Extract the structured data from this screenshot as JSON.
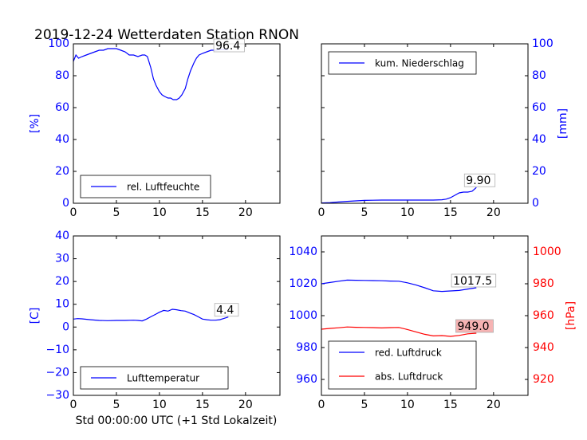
{
  "figure": {
    "title": "2019-12-24 Wetterdaten Station RNON",
    "xlabel": "Std 00:00:00 UTC (+1 Std Lokalzeit)"
  },
  "colors": {
    "blue": "#0000ff",
    "red": "#ff0000",
    "black": "#000000",
    "label_box_red": "#f4a6a6"
  },
  "chart_data": [
    {
      "id": "humidity",
      "type": "line",
      "xlim": [
        0,
        24
      ],
      "ylim": [
        0,
        100
      ],
      "xticks": [
        0,
        5,
        10,
        15,
        20
      ],
      "yticks": [
        0,
        20,
        40,
        60,
        80,
        100
      ],
      "ylabel": "[%]",
      "ytick_color": "#0000ff",
      "legend_loc": "lower-left",
      "series": [
        {
          "name": "rel. Luftfeuchte",
          "color": "#0000ff",
          "x": [
            0,
            0.3,
            0.6,
            1,
            1.5,
            2,
            2.5,
            3,
            3.5,
            4,
            4.5,
            5,
            5.5,
            6,
            6.5,
            7,
            7.5,
            8,
            8.3,
            8.6,
            9,
            9.3,
            9.6,
            10,
            10.3,
            10.6,
            11,
            11.3,
            11.6,
            12,
            12.3,
            12.6,
            13,
            13.3,
            13.6,
            14,
            14.3,
            14.6,
            15,
            15.5,
            16,
            16.5,
            17,
            17.5,
            18
          ],
          "y": [
            89,
            93,
            91,
            92,
            93,
            94,
            95,
            96,
            96,
            97,
            97,
            97,
            96,
            95,
            93,
            93,
            92,
            93,
            93,
            92,
            85,
            78,
            74,
            70,
            68,
            67,
            66,
            66,
            65,
            65,
            66,
            68,
            72,
            78,
            83,
            88,
            91,
            93,
            94,
            95,
            96,
            96,
            96.4,
            96.4,
            96.4
          ]
        }
      ],
      "annotation": {
        "text": "96.4",
        "x": 16.5,
        "y": 96.4
      }
    },
    {
      "id": "precipitation",
      "type": "line",
      "xlim": [
        0,
        24
      ],
      "ylim": [
        0,
        100
      ],
      "xticks": [
        0,
        5,
        10,
        15,
        20
      ],
      "yticks": [
        0,
        20,
        40,
        60,
        80,
        100
      ],
      "ylabel": "[mm]",
      "ytick_color": "#0000ff",
      "yaxis_side": "right",
      "legend_loc": "top-left",
      "series": [
        {
          "name": "kum. Niederschlag",
          "color": "#0000ff",
          "x": [
            0,
            1,
            2,
            3,
            4,
            5,
            6,
            7,
            8,
            9,
            10,
            11,
            12,
            13,
            14,
            14.5,
            15,
            15.5,
            16,
            16.5,
            17,
            17.5,
            18
          ],
          "y": [
            0.2,
            0.4,
            0.8,
            1.2,
            1.5,
            1.8,
            1.9,
            2.0,
            2.0,
            2.0,
            2.0,
            2.0,
            2.0,
            2.0,
            2.2,
            2.6,
            3.5,
            5.0,
            6.5,
            7.0,
            7.0,
            7.5,
            9.9
          ]
        }
      ],
      "annotation": {
        "text": "9.90",
        "x": 16.8,
        "y": 9.9
      }
    },
    {
      "id": "temperature",
      "type": "line",
      "xlim": [
        0,
        24
      ],
      "ylim": [
        -30,
        40
      ],
      "xticks": [
        0,
        5,
        10,
        15,
        20
      ],
      "yticks": [
        -30,
        -20,
        -10,
        0,
        10,
        20,
        30,
        40
      ],
      "ytick_labels": [
        "−30",
        "−20",
        "−10",
        "0",
        "10",
        "20",
        "30",
        "40"
      ],
      "ylabel": "[C]",
      "ytick_color": "#0000ff",
      "legend_loc": "lower-left",
      "series": [
        {
          "name": "Lufttemperatur",
          "color": "#0000ff",
          "x": [
            0,
            0.5,
            1,
            2,
            3,
            4,
            5,
            6,
            7,
            7.5,
            8,
            8.5,
            9,
            9.5,
            10,
            10.5,
            11,
            11.5,
            12,
            12.5,
            13,
            13.5,
            14,
            14.5,
            15,
            15.5,
            16,
            16.5,
            17,
            17.5,
            18
          ],
          "y": [
            3.5,
            3.7,
            3.6,
            3.2,
            2.9,
            2.8,
            2.9,
            2.9,
            3.0,
            2.9,
            2.7,
            3.5,
            4.5,
            5.5,
            6.5,
            7.3,
            7.0,
            7.8,
            7.6,
            7.2,
            7.0,
            6.2,
            5.5,
            4.5,
            3.5,
            3.2,
            3.0,
            3.0,
            3.2,
            3.8,
            4.4
          ]
        }
      ],
      "annotation": {
        "text": "4.4",
        "x": 16.6,
        "y": 4.4
      }
    },
    {
      "id": "pressure",
      "type": "line",
      "xlim": [
        0,
        24
      ],
      "ylim": [
        950,
        1050
      ],
      "ylim_right": [
        910,
        1010
      ],
      "xticks": [
        0,
        5,
        10,
        15,
        20
      ],
      "yticks": [
        960,
        980,
        1000,
        1020,
        1040
      ],
      "yticks_right": [
        920,
        940,
        960,
        980,
        1000
      ],
      "ylabel_right": "[hPa]",
      "ytick_color": "#0000ff",
      "ytick_color_right": "#ff0000",
      "legend_loc": "lower-left",
      "series": [
        {
          "name": "red. Luftdruck",
          "color": "#0000ff",
          "axis": "left",
          "x": [
            0,
            1,
            2,
            3,
            4,
            5,
            6,
            7,
            8,
            9,
            10,
            11,
            12,
            13,
            14,
            15,
            16,
            17,
            18
          ],
          "y": [
            1020.0,
            1020.8,
            1021.6,
            1022.3,
            1022.2,
            1022.1,
            1022.0,
            1021.9,
            1021.7,
            1021.6,
            1020.6,
            1019.2,
            1017.5,
            1015.6,
            1015.2,
            1015.5,
            1015.8,
            1016.7,
            1017.5
          ]
        },
        {
          "name": "abs. Luftdruck",
          "color": "#ff0000",
          "axis": "right",
          "x": [
            0,
            1,
            2,
            3,
            4,
            5,
            6,
            7,
            8,
            9,
            10,
            11,
            12,
            13,
            14,
            15,
            16,
            17,
            18
          ],
          "y": [
            951.5,
            952.0,
            952.4,
            952.9,
            952.7,
            952.6,
            952.5,
            952.3,
            952.5,
            952.6,
            951.3,
            949.8,
            948.3,
            947.3,
            947.5,
            947.0,
            947.6,
            948.6,
            949.0
          ]
        }
      ],
      "annotations": [
        {
          "text": "1017.5",
          "x": 15.3,
          "y": 1017.5,
          "axis": "left",
          "box": "plain"
        },
        {
          "text": "949.0",
          "x": 15.8,
          "y": 949.0,
          "axis": "right",
          "box": "red"
        }
      ]
    }
  ]
}
